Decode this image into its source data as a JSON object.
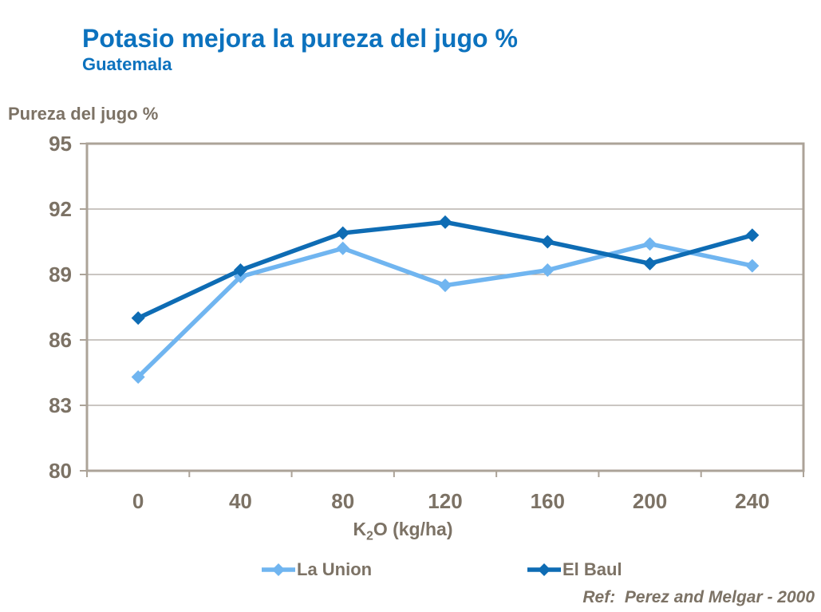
{
  "header": {
    "title": "Potasio mejora la pureza del jugo %",
    "subtitle": "Guatemala"
  },
  "chart_data": {
    "type": "line",
    "title": "Potasio mejora la pureza del jugo %",
    "subtitle": "Guatemala",
    "ylabel": "Pureza del jugo %",
    "xlabel": {
      "base": "K",
      "sub": "2",
      "rest": "O (kg/ha)"
    },
    "xlabel_text": "K2O (kg/ha)",
    "categories": [
      "0",
      "40",
      "80",
      "120",
      "160",
      "200",
      "240"
    ],
    "ylim": [
      80,
      95
    ],
    "yticks": [
      80,
      83,
      86,
      89,
      92,
      95
    ],
    "grid": "horizontal",
    "legend_position": "bottom",
    "marker": "diamond",
    "series": [
      {
        "name": "La Union",
        "color": "#70B5F0",
        "values": [
          84.3,
          88.9,
          90.2,
          88.5,
          89.2,
          90.4,
          89.4
        ]
      },
      {
        "name": "El Baul",
        "color": "#0E6CB4",
        "values": [
          87.0,
          89.2,
          90.9,
          91.4,
          90.5,
          89.5,
          90.8
        ]
      }
    ]
  },
  "footer": {
    "reference": "Ref:  Perez and Melgar - 2000"
  },
  "colors": {
    "title_blue": "#0C72BE",
    "axis_text": "#7C7265",
    "plot_border": "#ACA398",
    "gridline": "#AAA59D",
    "background": "#FFFFFF"
  }
}
